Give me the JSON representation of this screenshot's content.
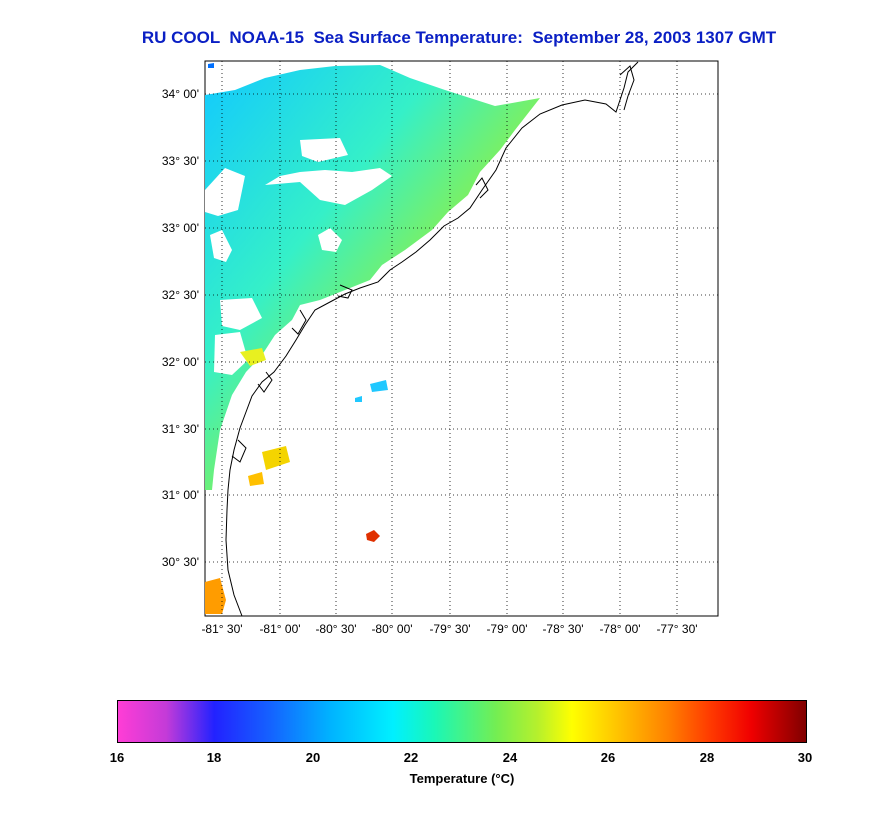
{
  "title": "RU COOL  NOAA-15  Sea Surface Temperature:  September 28, 2003 1307 GMT",
  "latitude_labels": [
    "34° 00'",
    "33° 30'",
    "33° 00'",
    "32° 30'",
    "32° 00'",
    "31° 30'",
    "31° 00'",
    "30° 30'"
  ],
  "longitude_labels": [
    "-81° 30'",
    "-81° 00'",
    "-80° 30'",
    "-80° 00'",
    "-79° 30'",
    "-79° 00'",
    "-78° 30'",
    "-78° 00'",
    "-77° 30'"
  ],
  "colorbar": {
    "ticks": [
      "16",
      "18",
      "20",
      "22",
      "24",
      "26",
      "28",
      "30"
    ],
    "label": "Temperature (°C)",
    "min": 16,
    "max": 30
  },
  "colors": {
    "title": "#0a1fc4",
    "coastline": "#000000",
    "grid": "#000000",
    "sst_cold": "#00c8ff",
    "sst_mid": "#7cee52",
    "sst_warm": "#ffd000",
    "sst_hot": "#e02000"
  }
}
